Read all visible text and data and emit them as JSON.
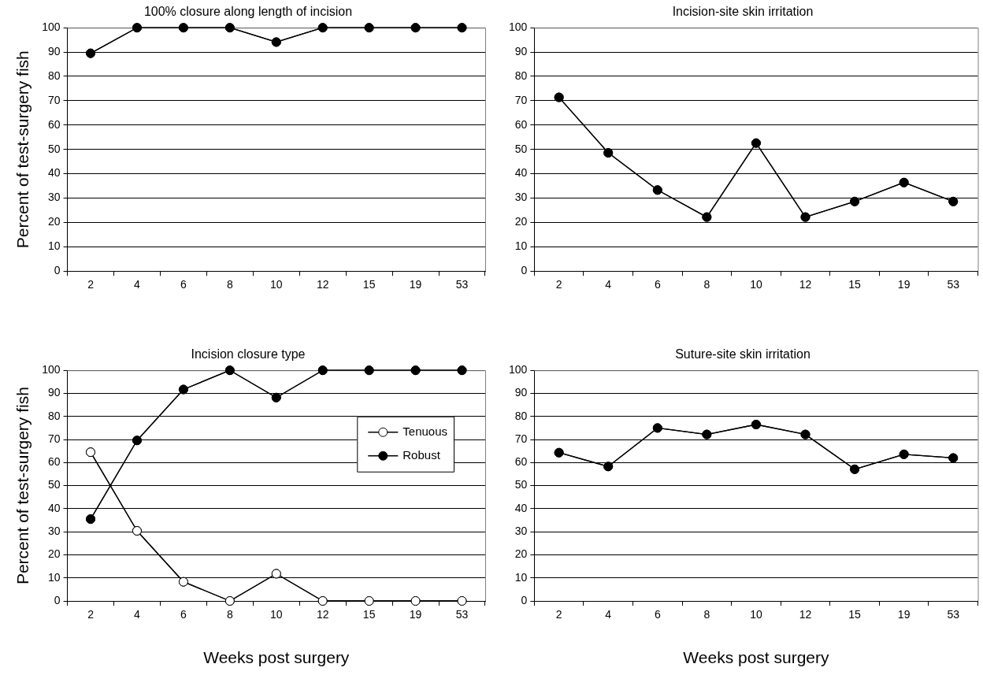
{
  "chart_data": [
    {
      "type": "line",
      "title": "100% closure along length of incision",
      "ylabel": "Percent of test-surgery fish",
      "categories": [
        "2",
        "4",
        "6",
        "8",
        "10",
        "12",
        "15",
        "19",
        "53"
      ],
      "series": [
        {
          "color": "#000000",
          "values": [
            89.5,
            100,
            100,
            100,
            94.1,
            100,
            100,
            100,
            100
          ]
        }
      ],
      "ylim": [
        0,
        100
      ],
      "yticks": [
        0,
        10,
        20,
        30,
        40,
        50,
        60,
        70,
        80,
        90,
        100
      ],
      "grid": "y",
      "marker": "circle"
    },
    {
      "type": "line",
      "title": "Incision-site skin irritation",
      "categories": [
        "2",
        "4",
        "6",
        "8",
        "10",
        "12",
        "15",
        "19",
        "53"
      ],
      "series": [
        {
          "color": "#000000",
          "values": [
            71.4,
            48.6,
            33.3,
            22.2,
            52.6,
            22.2,
            28.6,
            36.4,
            28.6
          ]
        }
      ],
      "ylim": [
        0,
        100
      ],
      "yticks": [
        0,
        10,
        20,
        30,
        40,
        50,
        60,
        70,
        80,
        90,
        100
      ],
      "grid": "y",
      "marker": "circle"
    },
    {
      "type": "line",
      "title": "Incision closure type",
      "ylabel": "Percent of test-surgery fish",
      "xlabel": "Weeks post surgery",
      "categories": [
        "2",
        "4",
        "6",
        "8",
        "10",
        "12",
        "15",
        "19",
        "53"
      ],
      "series": [
        {
          "name": "Tenuous",
          "color": "#ffffff",
          "values": [
            64.5,
            30.4,
            8.3,
            0,
            11.8,
            0,
            0,
            0,
            0
          ]
        },
        {
          "name": "Robust",
          "color": "#000000",
          "values": [
            35.5,
            69.6,
            91.7,
            100,
            88.2,
            100,
            100,
            100,
            100
          ]
        }
      ],
      "ylim": [
        0,
        100
      ],
      "yticks": [
        0,
        10,
        20,
        30,
        40,
        50,
        60,
        70,
        80,
        90,
        100
      ],
      "grid": "y",
      "marker": "circle",
      "legend": "top right"
    },
    {
      "type": "line",
      "title": "Suture-site skin irritation",
      "xlabel": "Weeks post surgery",
      "categories": [
        "2",
        "4",
        "6",
        "8",
        "10",
        "12",
        "15",
        "19",
        "53"
      ],
      "series": [
        {
          "color": "#000000",
          "values": [
            64.3,
            58.3,
            75,
            72.2,
            76.5,
            72.2,
            57.1,
            63.6,
            62
          ]
        }
      ],
      "ylim": [
        0,
        100
      ],
      "yticks": [
        0,
        10,
        20,
        30,
        40,
        50,
        60,
        70,
        80,
        90,
        100
      ],
      "grid": "y",
      "marker": "circle"
    }
  ]
}
